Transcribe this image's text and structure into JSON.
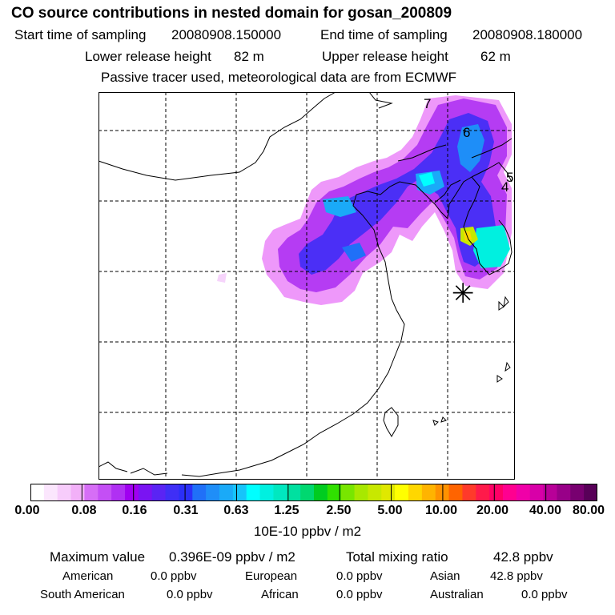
{
  "header": {
    "title": "CO  source contributions in nested domain for gosan_200809",
    "start_label": "Start time of sampling",
    "start_value": "20080908.150000",
    "end_label": "End time of sampling",
    "end_value": "20080908.180000",
    "lower_label": "Lower release height",
    "lower_value": "82 m",
    "upper_label": "Upper release height",
    "upper_value": "62 m",
    "tracer_note": "Passive tracer used, meteorological data are from ECMWF"
  },
  "map": {
    "day_markers": [
      "7",
      "6",
      "5",
      "4"
    ],
    "receptor_symbol": "✳"
  },
  "colorbar": {
    "tick_labels": [
      "0.00",
      "0.08",
      "0.16",
      "0.31",
      "0.63",
      "1.25",
      "2.50",
      "5.00",
      "10.00",
      "20.00",
      "40.00",
      "80.00"
    ],
    "unit_label": "10E-10 ppbv / m2",
    "colors": [
      "#ffffff",
      "#fbe6fd",
      "#f7ccfb",
      "#f2b0f8",
      "#d66ef6",
      "#c44ff5",
      "#b030f3",
      "#a000f0",
      "#7a14f2",
      "#5a24f4",
      "#3f2ff6",
      "#2b2ff8",
      "#2070f8",
      "#1f8ef8",
      "#1aaaf8",
      "#16c4fa",
      "#00ffff",
      "#00f0e0",
      "#00e8c0",
      "#00e0a0",
      "#00d870",
      "#00cc20",
      "#30e000",
      "#78e600",
      "#a8e800",
      "#c8e800",
      "#e0e800",
      "#ffff00",
      "#ffd700",
      "#ffb400",
      "#ff9200",
      "#ff6400",
      "#ff3a2a",
      "#ff1a4a",
      "#ff0066",
      "#ff0090",
      "#f000a8",
      "#d800a8",
      "#b80098",
      "#980088",
      "#780070",
      "#580058"
    ]
  },
  "summary": {
    "max_label": "Maximum value",
    "max_value": "0.396E-09 ppbv / m2",
    "total_label": "Total mixing ratio",
    "total_value": "42.8 ppbv",
    "regions": [
      {
        "name": "American",
        "value": "0.0 ppbv"
      },
      {
        "name": "European",
        "value": "0.0 ppbv"
      },
      {
        "name": "Asian",
        "value": "42.8 ppbv"
      },
      {
        "name": "South American",
        "value": "0.0 ppbv"
      },
      {
        "name": "African",
        "value": "0.0 ppbv"
      },
      {
        "name": "Australian",
        "value": "0.0 ppbv"
      }
    ]
  }
}
